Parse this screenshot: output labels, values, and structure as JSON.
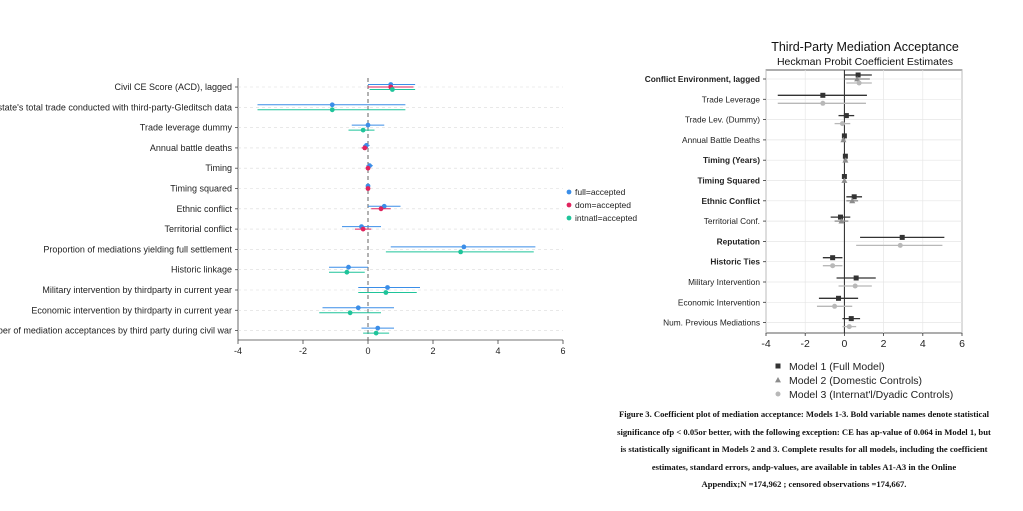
{
  "chart_data": [
    {
      "type": "scatter",
      "subtype": "coefficient-plot",
      "title": "",
      "xlabel": "",
      "ylabel": "",
      "xlim": [
        -4,
        6
      ],
      "x_ticks": [
        "-4",
        "-2",
        "0",
        "2",
        "4",
        "6"
      ],
      "grid": true,
      "legend_position": "right",
      "categories": [
        "Civil CE Score (ACD), lagged",
        "Ratio of civil war state's total trade conducted with third-party-Gleditsch data",
        "Trade leverage dummy",
        "Annual battle deaths",
        "Timing",
        "Timing squared",
        "Ethnic conflict",
        "Territorial conflict",
        "Proportion of mediations yielding full settlement",
        "Historic linkage",
        "Military intervention by thirdparty in current year",
        "Economic intervention by thirdparty in current year",
        "Total number of mediation acceptances by third party during civil war"
      ],
      "series": [
        {
          "name": "full=accepted",
          "color": "#3b8ee8",
          "values": [
            0.7,
            -1.1,
            0.0,
            -0.05,
            0.05,
            0.0,
            0.5,
            -0.2,
            2.95,
            -0.6,
            0.6,
            -0.3,
            0.3
          ],
          "lower": [
            0.0,
            -3.4,
            -0.5,
            -0.15,
            -0.05,
            -0.05,
            0.0,
            -0.8,
            0.7,
            -1.2,
            -0.3,
            -1.4,
            -0.2
          ],
          "upper": [
            1.45,
            1.15,
            0.5,
            0.05,
            0.15,
            0.05,
            1.0,
            0.4,
            5.15,
            0.0,
            1.6,
            0.8,
            0.8
          ]
        },
        {
          "name": "dom=accepted",
          "color": "#e0245e",
          "values": [
            0.7,
            null,
            null,
            -0.1,
            0.0,
            0.0,
            0.4,
            -0.15,
            null,
            null,
            null,
            null,
            null
          ],
          "lower": [
            0.0,
            null,
            null,
            -0.2,
            -0.05,
            -0.05,
            0.1,
            -0.4,
            null,
            null,
            null,
            null,
            null
          ],
          "upper": [
            1.4,
            null,
            null,
            0.0,
            0.05,
            0.05,
            0.7,
            0.1,
            null,
            null,
            null,
            null,
            null
          ]
        },
        {
          "name": "intnatl=accepted",
          "color": "#1fc49a",
          "values": [
            0.75,
            -1.1,
            -0.15,
            null,
            null,
            null,
            null,
            null,
            2.85,
            -0.65,
            0.55,
            -0.55,
            0.25
          ],
          "lower": [
            0.05,
            -3.4,
            -0.6,
            null,
            null,
            null,
            null,
            null,
            0.55,
            -1.2,
            -0.3,
            -1.5,
            -0.15
          ],
          "upper": [
            1.45,
            1.15,
            0.2,
            null,
            null,
            null,
            null,
            null,
            5.1,
            -0.1,
            1.5,
            0.4,
            0.65
          ]
        }
      ]
    },
    {
      "type": "scatter",
      "subtype": "coefficient-plot",
      "title": "Third-Party Mediation Acceptance",
      "subtitle": "Heckman Probit Coefficient Estimates",
      "xlabel": "",
      "ylabel": "",
      "xlim": [
        -4,
        6
      ],
      "x_ticks": [
        "-4",
        "-2",
        "0",
        "2",
        "4",
        "6"
      ],
      "grid": true,
      "legend_position": "bottom",
      "categories": [
        "Conflict Environment, lagged",
        "Trade Leverage",
        "Trade Lev. (Dummy)",
        "Annual Battle Deaths",
        "Timing (Years)",
        "Timing Squared",
        "Ethnic Conflict",
        "Territorial Conf.",
        "Reputation",
        "Historic Ties",
        "Military Intervention",
        "Economic Intervention",
        "Num. Previous Mediations"
      ],
      "bold_categories": [
        "Conflict Environment, lagged",
        "Timing (Years)",
        "Timing Squared",
        "Ethnic Conflict",
        "Reputation",
        "Historic Ties"
      ],
      "series": [
        {
          "name": "Model 1 (Full Model)",
          "marker": "square",
          "color": "#333333",
          "values": [
            0.7,
            -1.1,
            0.1,
            0.0,
            0.05,
            0.0,
            0.5,
            -0.2,
            2.95,
            -0.6,
            0.6,
            -0.3,
            0.35
          ],
          "lower": [
            0.0,
            -3.4,
            -0.3,
            -0.1,
            -0.05,
            -0.05,
            0.1,
            -0.7,
            0.8,
            -1.1,
            -0.4,
            -1.3,
            -0.1
          ],
          "upper": [
            1.4,
            1.15,
            0.5,
            0.1,
            0.15,
            0.05,
            0.9,
            0.3,
            5.1,
            -0.1,
            1.6,
            0.7,
            0.8
          ]
        },
        {
          "name": "Model 2 (Domestic Controls)",
          "marker": "triangle",
          "color": "#8c8c8c",
          "values": [
            0.65,
            null,
            null,
            -0.05,
            0.05,
            0.0,
            0.4,
            -0.15,
            null,
            null,
            null,
            null,
            null
          ],
          "lower": [
            0.0,
            null,
            null,
            -0.15,
            -0.05,
            -0.05,
            0.1,
            -0.5,
            null,
            null,
            null,
            null,
            null
          ],
          "upper": [
            1.3,
            null,
            null,
            0.05,
            0.15,
            0.05,
            0.7,
            0.2,
            null,
            null,
            null,
            null,
            null
          ]
        },
        {
          "name": "Model 3 (Internat'l/Dyadic Controls)",
          "marker": "circle",
          "color": "#b8b8b8",
          "values": [
            0.75,
            -1.1,
            -0.1,
            null,
            null,
            null,
            null,
            null,
            2.85,
            -0.6,
            0.55,
            -0.5,
            0.25
          ],
          "lower": [
            0.1,
            -3.4,
            -0.5,
            null,
            null,
            null,
            null,
            null,
            0.6,
            -1.1,
            -0.3,
            -1.4,
            -0.1
          ],
          "upper": [
            1.4,
            1.1,
            0.3,
            null,
            null,
            null,
            null,
            null,
            5.0,
            -0.1,
            1.4,
            0.4,
            0.6
          ]
        }
      ]
    }
  ],
  "caption": {
    "lines": [
      "Figure 3. Coefficient plot of mediation acceptance: Models 1-3. Bold variable names denote statistical",
      "significance ofp < 0.05or better, with the following exception: CE has ap-value of 0.064 in Model 1, but",
      "is statistically significant in Models 2 and 3. Complete results for all models, including the coefficient",
      "estimates, standard errors, andp-values, are available in tables A1-A3 in the Online",
      "Appendix;N =174,962 ; censored observations =174,667."
    ]
  }
}
